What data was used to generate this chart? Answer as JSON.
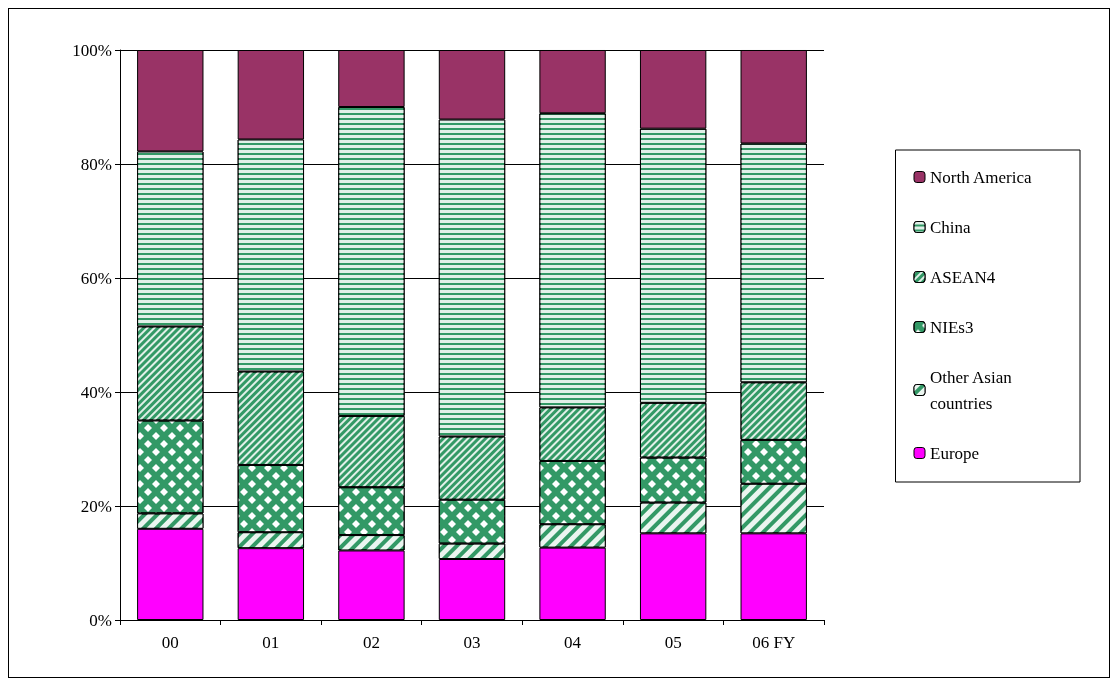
{
  "chart_data": {
    "type": "bar",
    "stacked": true,
    "categories": [
      "00",
      "01",
      "02",
      "03",
      "04",
      "05",
      "06 FY"
    ],
    "series": [
      {
        "name": "Europe",
        "color": "#ff00ff",
        "values": [
          16,
          12.6,
          12.2,
          10.7,
          12.7,
          15.2,
          15.2
        ]
      },
      {
        "name": "Other Asian countries",
        "color": "#339966",
        "values": [
          2.7,
          2.8,
          2.7,
          2.7,
          4.1,
          5.4,
          8.7
        ]
      },
      {
        "name": "NIEs3",
        "color": "#339966",
        "values": [
          16.3,
          11.8,
          8.4,
          7.7,
          11.1,
          7.9,
          7.7
        ]
      },
      {
        "name": "ASEAN4",
        "color": "#339966",
        "values": [
          16.5,
          16.4,
          12.5,
          11.1,
          9.4,
          9.6,
          10.1
        ]
      },
      {
        "name": "China",
        "color": "#339966",
        "values": [
          30.7,
          40.7,
          54.2,
          55.6,
          51.6,
          48.1,
          41.9
        ]
      },
      {
        "name": "North America",
        "color": "#993366",
        "values": [
          17.8,
          15.7,
          10.0,
          12.2,
          11.1,
          13.8,
          16.4
        ]
      }
    ],
    "ylim": [
      0,
      100
    ],
    "yticks": [
      {
        "value": 0,
        "label": "0%"
      },
      {
        "value": 20,
        "label": "20%"
      },
      {
        "value": 40,
        "label": "40%"
      },
      {
        "value": 60,
        "label": "60%"
      },
      {
        "value": 80,
        "label": "80%"
      },
      {
        "value": 100,
        "label": "100%"
      }
    ],
    "grid": "y",
    "legend": "right"
  }
}
